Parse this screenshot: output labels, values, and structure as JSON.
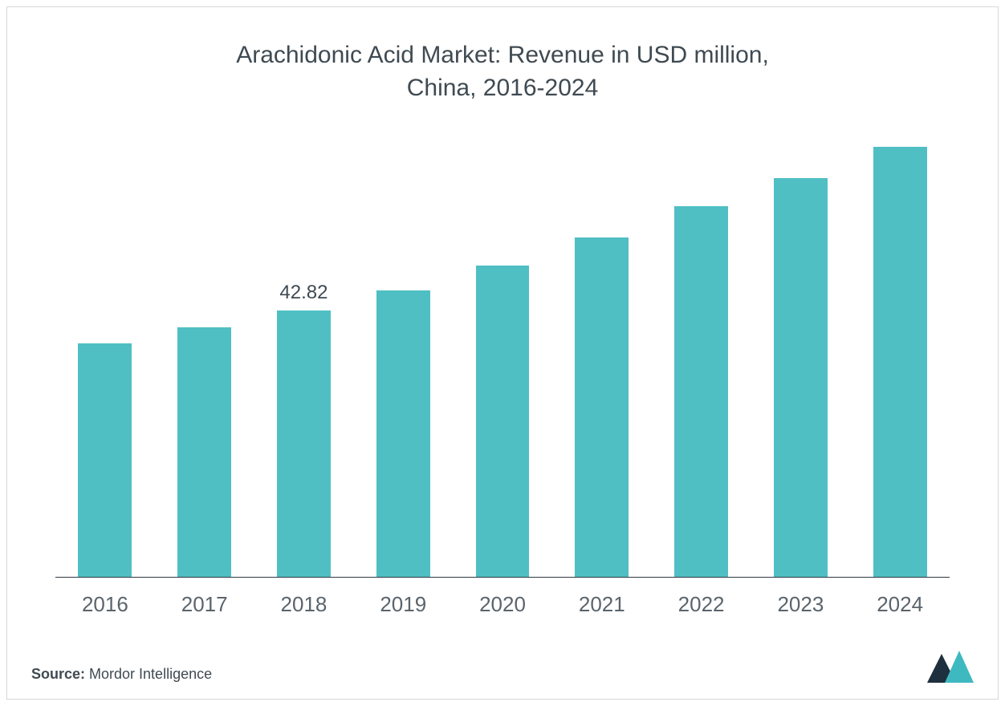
{
  "chart": {
    "type": "bar",
    "title_line1": "Arachidonic Acid Market: Revenue in USD million,",
    "title_line2": "China, 2016-2024",
    "title_fontsize": 30,
    "title_color": "#3f4a52",
    "categories": [
      "2016",
      "2017",
      "2018",
      "2019",
      "2020",
      "2021",
      "2022",
      "2023",
      "2024"
    ],
    "values": [
      37.5,
      40.0,
      42.82,
      46.0,
      50.0,
      54.5,
      59.5,
      64.0,
      69.0
    ],
    "value_label_index": 2,
    "value_label_text": "42.82",
    "bar_color": "#4fbfc4",
    "axis_color": "#2f3a42",
    "x_label_color": "#5a646c",
    "x_label_fontsize": 26,
    "value_label_fontsize": 24,
    "bar_width_ratio": 0.54,
    "ylim": [
      0,
      72
    ],
    "background_color": "#ffffff",
    "border_color": "#d5d8db"
  },
  "footer": {
    "source_label": "Source:",
    "source_text": " Mordor Intelligence",
    "logo_color_dark": "#1e2f3d",
    "logo_color_accent": "#3fb9c0"
  }
}
